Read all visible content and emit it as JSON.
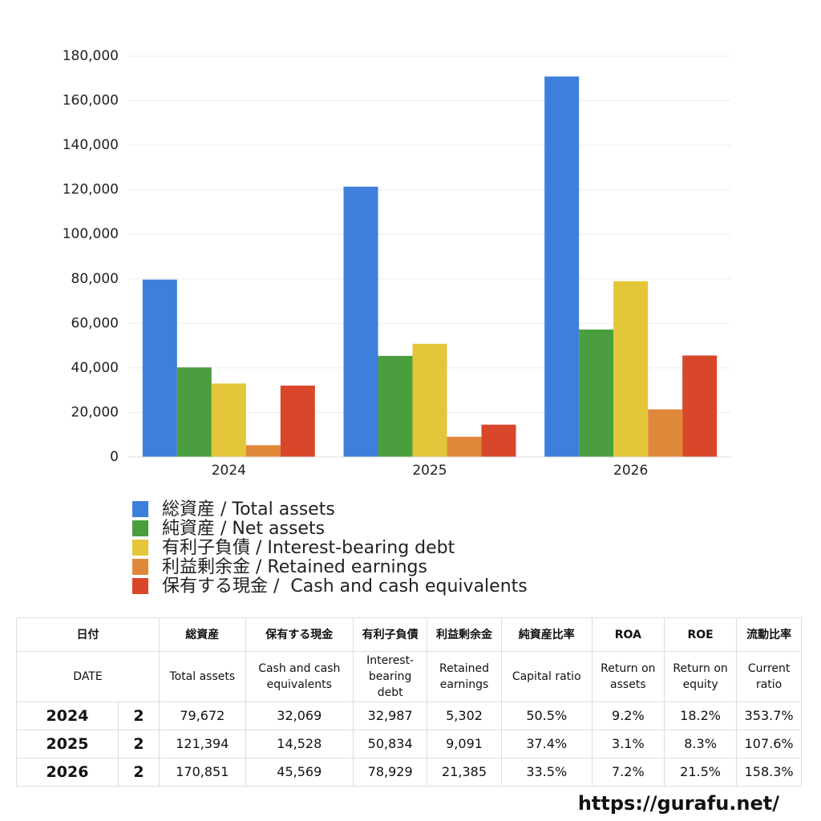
{
  "chart_data": {
    "type": "bar",
    "categories": [
      "2024",
      "2025",
      "2026"
    ],
    "series": [
      {
        "name": "総資産 / Total assets",
        "color": "#3f7fdc",
        "values": [
          79672,
          121394,
          170851
        ]
      },
      {
        "name": "純資産 / Net assets",
        "color": "#4a9e3e",
        "values": [
          40234,
          45401,
          57235
        ]
      },
      {
        "name": "有利子負債 / Interest-bearing debt",
        "color": "#e3c63a",
        "values": [
          32987,
          50834,
          78929
        ]
      },
      {
        "name": "利益剰余金 / Retained earnings",
        "color": "#e0883a",
        "values": [
          5302,
          9091,
          21385
        ]
      },
      {
        "name": "保有する現金 /  Cash and cash equivalents",
        "color": "#d9472b",
        "values": [
          32069,
          14528,
          45569
        ]
      }
    ],
    "ylim": [
      0,
      180000
    ],
    "yticks": [
      0,
      {
        "value": 20000,
        "label": "20,000"
      },
      {
        "value": 40000,
        "label": "40,000"
      },
      {
        "value": 60000,
        "label": "60,000"
      },
      {
        "value": 80000,
        "label": "80,000"
      },
      {
        "value": 100000,
        "label": "100,000"
      },
      {
        "value": 120000,
        "label": "120,000"
      },
      {
        "value": 140000,
        "label": "140,000"
      },
      {
        "value": 160000,
        "label": "160,000"
      },
      {
        "value": 180000,
        "label": "180,000"
      }
    ],
    "grid": true
  },
  "table": {
    "date_header": {
      "ja": "日付",
      "en": "DATE"
    },
    "columns": [
      {
        "ja": "総資産",
        "en": "Total assets"
      },
      {
        "ja": "保有する現金",
        "en": "Cash and cash\nequivalents"
      },
      {
        "ja": "有利子負債",
        "en": "Interest-\nbearing\ndebt"
      },
      {
        "ja": "利益剰余金",
        "en": "Retained\nearnings"
      },
      {
        "ja": "純資産比率",
        "en": "Capital ratio"
      },
      {
        "ja": "ROA",
        "en": "Return on\nassets"
      },
      {
        "ja": "ROE",
        "en": "Return on\nequity"
      },
      {
        "ja": "流動比率",
        "en": "Current\nratio"
      }
    ],
    "rows": [
      {
        "date": "2024",
        "count": "2",
        "cells": [
          "79,672",
          "32,069",
          "32,987",
          "5,302",
          "50.5%",
          "9.2%",
          "18.2%",
          "353.7%"
        ]
      },
      {
        "date": "2025",
        "count": "2",
        "cells": [
          "121,394",
          "14,528",
          "50,834",
          "9,091",
          "37.4%",
          "3.1%",
          "8.3%",
          "107.6%"
        ]
      },
      {
        "date": "2026",
        "count": "2",
        "cells": [
          "170,851",
          "45,569",
          "78,929",
          "21,385",
          "33.5%",
          "7.2%",
          "21.5%",
          "158.3%"
        ]
      }
    ]
  },
  "footer": "https://gurafu.net/"
}
